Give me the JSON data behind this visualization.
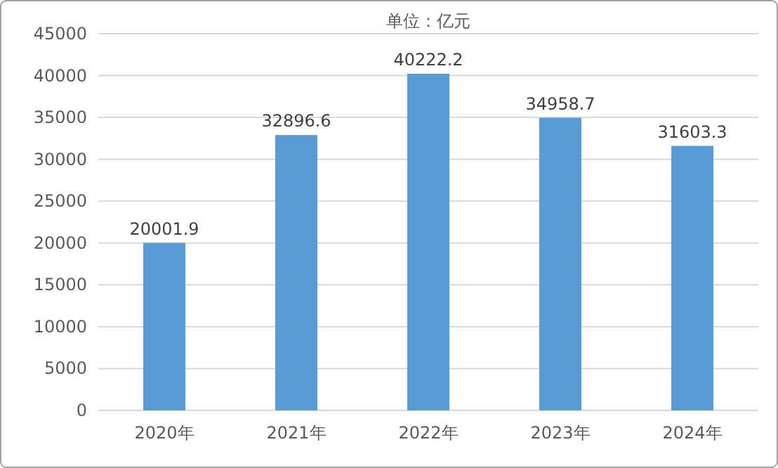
{
  "chart_data": {
    "type": "bar",
    "title": "单位：亿元",
    "categories": [
      "2020年",
      "2021年",
      "2022年",
      "2023年",
      "2024年"
    ],
    "values": [
      20001.9,
      32896.6,
      40222.2,
      34958.7,
      31603.3
    ],
    "color": "#5b9bd5",
    "ylim": [
      0,
      45000
    ],
    "yticks": [
      0,
      5000,
      10000,
      15000,
      20000,
      25000,
      30000,
      35000,
      40000,
      45000
    ],
    "grid": "y",
    "data_labels": true
  }
}
